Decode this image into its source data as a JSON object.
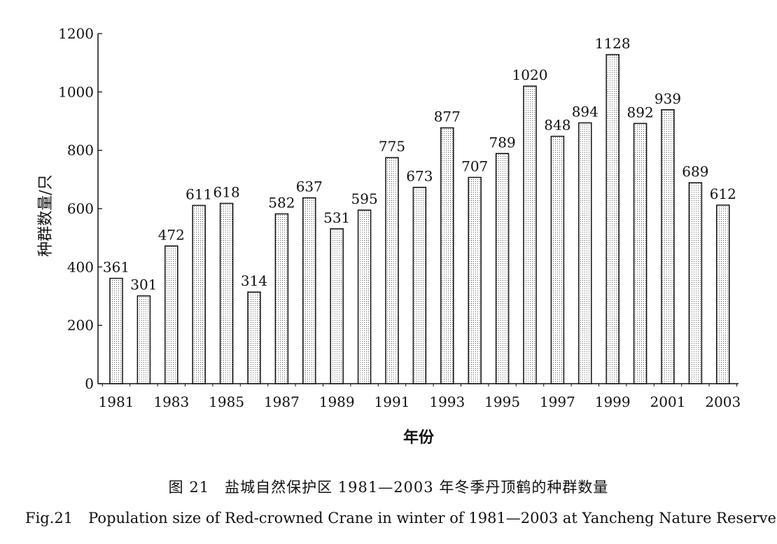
{
  "chart_data": {
    "type": "bar",
    "categories": [
      "1981",
      "1982",
      "1983",
      "1984",
      "1985",
      "1986",
      "1987",
      "1988",
      "1989",
      "1990",
      "1991",
      "1992",
      "1993",
      "1994",
      "1995",
      "1996",
      "1997",
      "1998",
      "1999",
      "2000",
      "2001",
      "2002",
      "2003"
    ],
    "values": [
      361,
      301,
      472,
      611,
      618,
      314,
      582,
      637,
      531,
      595,
      775,
      673,
      877,
      707,
      789,
      1020,
      848,
      894,
      1128,
      892,
      939,
      689,
      612
    ],
    "xlabel": "年份",
    "ylabel": "种群数量/只",
    "ylim": [
      0,
      1200
    ],
    "yticks": [
      "0",
      "200",
      "400",
      "600",
      "800",
      "1000",
      "1200"
    ],
    "xticks": [
      "1981",
      "1983",
      "1985",
      "1987",
      "1989",
      "1991",
      "1993",
      "1995",
      "1997",
      "1999",
      "2001",
      "2003"
    ],
    "grid": false,
    "bar_pattern": "dotted"
  },
  "caption": {
    "cn_number": "图 21",
    "cn_text": "盐城自然保护区 1981—2003 年冬季丹顶鹤的种群数量",
    "en_number": "Fig.21",
    "en_text": "Population size of Red-crowned Crane in winter of 1981—2003 at Yancheng Nature Reserve"
  }
}
